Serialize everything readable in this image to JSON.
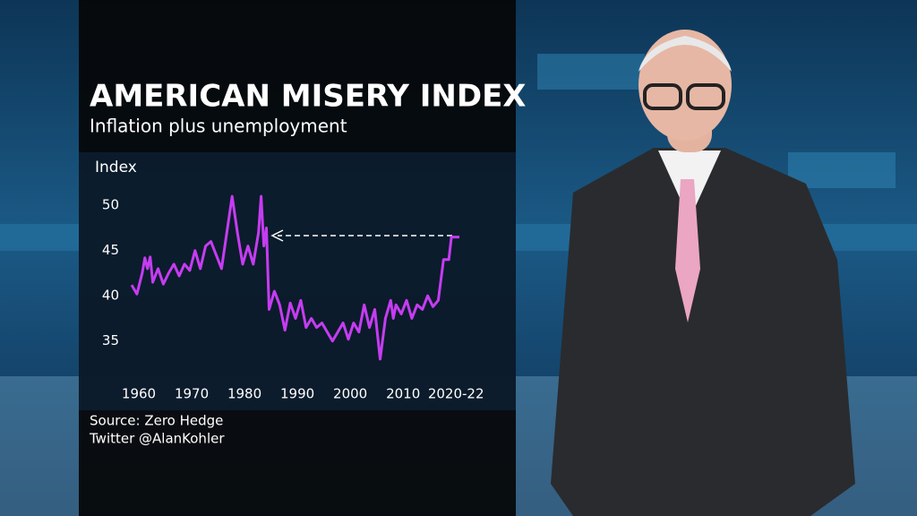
{
  "chart_data": {
    "type": "line",
    "title": "AMERICAN MISERY INDEX",
    "subtitle": "Inflation plus unemployment",
    "y_label": "Index",
    "source": "Source: Zero Hedge",
    "credit": "Twitter @AlanKohler",
    "color": "#c63cf2",
    "xlim": [
      1960,
      2022
    ],
    "ylim": [
      32,
      52
    ],
    "xticks": [
      1960,
      1970,
      1980,
      1990,
      2000,
      2010,
      {
        "value": 2020,
        "label": "2020-22"
      }
    ],
    "yticks": [
      35,
      40,
      45,
      50
    ],
    "x": [
      1960,
      1961,
      1962,
      1962.5,
      1963,
      1963.5,
      1964,
      1965,
      1966,
      1967,
      1968,
      1969,
      1970,
      1971,
      1972,
      1973,
      1974,
      1975,
      1976,
      1977,
      1978,
      1979,
      1980,
      1981,
      1982,
      1983,
      1984,
      1984.5,
      1985,
      1985.5,
      1986,
      1987,
      1988,
      1989,
      1990,
      1991,
      1992,
      1993,
      1994,
      1995,
      1996,
      1997,
      1998,
      1999,
      2000,
      2001,
      2002,
      2003,
      2004,
      2005,
      2006,
      2007,
      2008,
      2009,
      2009.5,
      2010,
      2011,
      2012,
      2013,
      2014,
      2015,
      2016,
      2017,
      2018,
      2019,
      2020,
      2020.5,
      2021,
      2021.5,
      2022
    ],
    "series": [
      {
        "name": "Misery index",
        "values": [
          41.2,
          40.2,
          42.5,
          44.2,
          43,
          44.3,
          41.5,
          43,
          41.3,
          42.5,
          43.5,
          42.2,
          43.5,
          42.8,
          45,
          43,
          45.5,
          46,
          44.5,
          43,
          47,
          51,
          47,
          43.5,
          45.5,
          43.5,
          47,
          51,
          45.5,
          47.5,
          38.5,
          40.5,
          39,
          36.2,
          39.2,
          37.5,
          39.5,
          36.5,
          37.5,
          36.5,
          37,
          36,
          35,
          36,
          37,
          35.2,
          37,
          36,
          39,
          36.5,
          38.5,
          33,
          37.5,
          39.5,
          37.5,
          39,
          38,
          39.5,
          37.5,
          39,
          38.5,
          40,
          38.8,
          39.5,
          44,
          44,
          46.5,
          46.5,
          46.5,
          46.5
        ]
      }
    ]
  }
}
